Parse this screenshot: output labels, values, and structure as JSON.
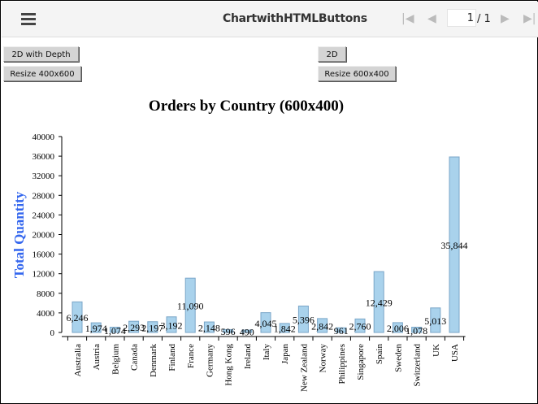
{
  "toolbar": {
    "title": "ChartwithHTMLButtons",
    "page_current": "1",
    "page_total": "/ 1"
  },
  "buttons": {
    "depth": "2D with Depth",
    "flat": "2D",
    "resize_400x600": "Resize 400x600",
    "resize_600x400": "Resize 600x400"
  },
  "chart_data": {
    "type": "bar",
    "title": "Orders by Country (600x400)",
    "xlabel": "",
    "ylabel": "Total Quantity",
    "ylim": [
      0,
      40000
    ],
    "yticks": [
      "0",
      "4000",
      "8000",
      "12000",
      "16000",
      "20000",
      "24000",
      "28000",
      "32000",
      "36000",
      "40000"
    ],
    "categories": [
      "Australia",
      "Austria",
      "Belgium",
      "Canada",
      "Denmark",
      "Finland",
      "France",
      "Germany",
      "Hong Kong",
      "Ireland",
      "Italy",
      "Japan",
      "New Zealand",
      "Norway",
      "Philippines",
      "Singapore",
      "Spain",
      "Sweden",
      "Switzerland",
      "UK",
      "USA"
    ],
    "values": [
      6246,
      1974,
      1074,
      2293,
      2197,
      3192,
      11090,
      2148,
      596,
      490,
      4045,
      1842,
      5396,
      2842,
      961,
      2760,
      12429,
      2006,
      1078,
      5013,
      35844
    ],
    "labels": [
      "6,246",
      "1,974",
      "1,074",
      "2,293",
      "2,197",
      "3,192",
      "11,090",
      "2,148",
      "596",
      "490",
      "4,045",
      "1,842",
      "5,396",
      "2,842",
      "961",
      "2,760",
      "12,429",
      "2,006",
      "1,078",
      "5,013",
      "35,844"
    ],
    "bar_color": "#a9d2ec",
    "grid": false,
    "legend": "none"
  }
}
